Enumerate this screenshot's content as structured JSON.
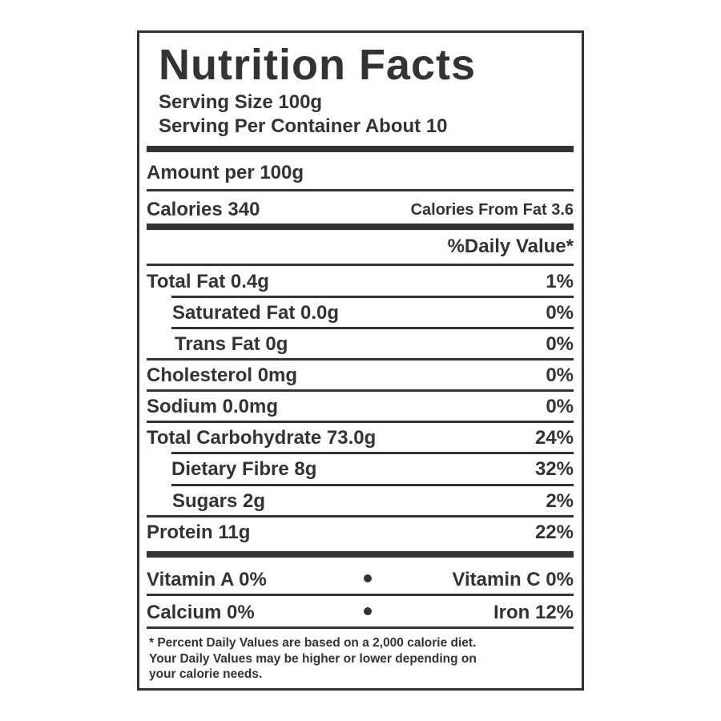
{
  "title": "Nutrition Facts",
  "serving": [
    "Serving Size 100g",
    "Serving Per Container About 10"
  ],
  "amount_per": "Amount per 100g",
  "calories": "Calories 340",
  "calories_from_fat": "Calories From Fat 3.6",
  "daily_value_header": "%Daily Value*",
  "nutrients": [
    {
      "label": "Total Fat 0.4g",
      "dv": "1%"
    },
    {
      "label": "Saturated Fat 0.0g",
      "dv": "0%"
    },
    {
      "label": "Trans Fat 0g",
      "dv": "0%"
    },
    {
      "label": "Cholesterol 0mg",
      "dv": "0%"
    },
    {
      "label": "Sodium 0.0mg",
      "dv": "0%"
    },
    {
      "label": "Total Carbohydrate 73.0g",
      "dv": "24%"
    },
    {
      "label": "Dietary Fibre 8g",
      "dv": "32%"
    },
    {
      "label": "Sugars 2g",
      "dv": "2%"
    },
    {
      "label": "Protein 11g",
      "dv": "22%"
    }
  ],
  "vitamins": [
    [
      "Vitamin A 0%",
      "Vitamin C 0%"
    ],
    [
      "Calcium 0%",
      "Iron 12%"
    ]
  ],
  "footnote": [
    "* Percent Daily Values are based on a 2,000 calorie diet.",
    "Your Daily Values may be higher or lower depending on",
    "your calorie needs."
  ]
}
